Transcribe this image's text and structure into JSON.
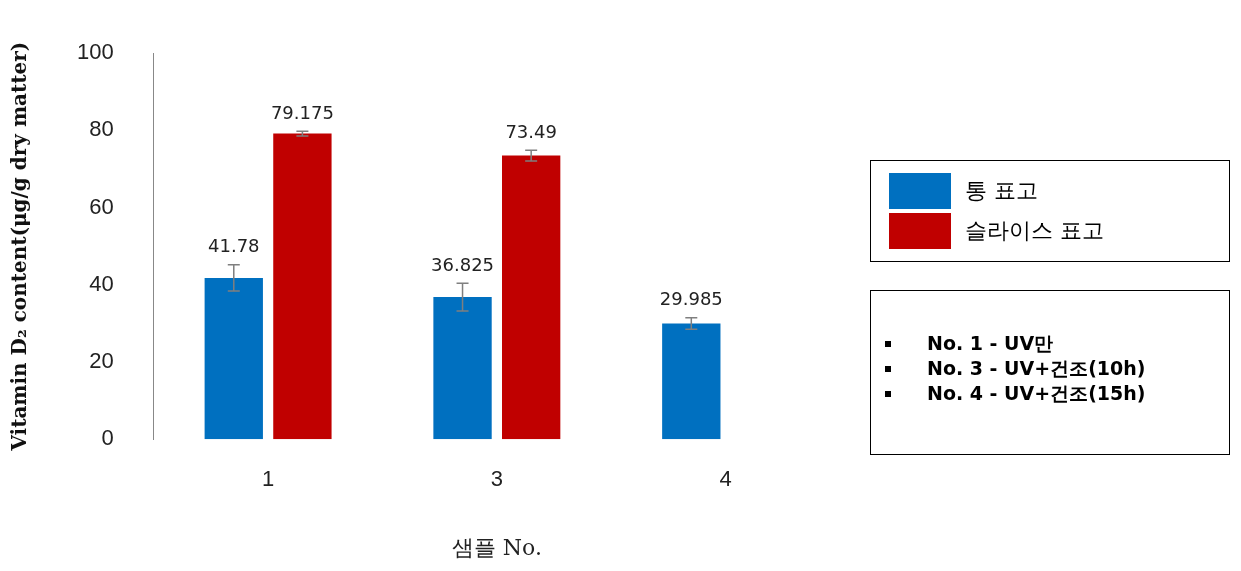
{
  "chart_data": {
    "type": "bar",
    "xlabel": "샘플 No.",
    "ylabel": "Vitamin D₂ content(μg/g dry matter)",
    "categories": [
      "1",
      "3",
      "4"
    ],
    "series": [
      {
        "name": "통 표고",
        "color": "#0070c0",
        "values": [
          41.78,
          36.825,
          29.985
        ],
        "errors": [
          3.4,
          3.6,
          1.5
        ]
      },
      {
        "name": "슬라이스 표고",
        "color": "#c00000",
        "values": [
          79.175,
          73.49,
          null
        ],
        "errors": [
          0.6,
          1.4,
          null
        ]
      }
    ],
    "ylim": [
      0,
      100
    ],
    "yticks": [
      0,
      20,
      40,
      60,
      80,
      100
    ],
    "grid": false,
    "legend": "right",
    "data_labels": true,
    "annotations": [
      "No. 1 - UV만",
      "No. 3 - UV+건조(10h)",
      "No. 4 - UV+건조(15h)"
    ]
  }
}
